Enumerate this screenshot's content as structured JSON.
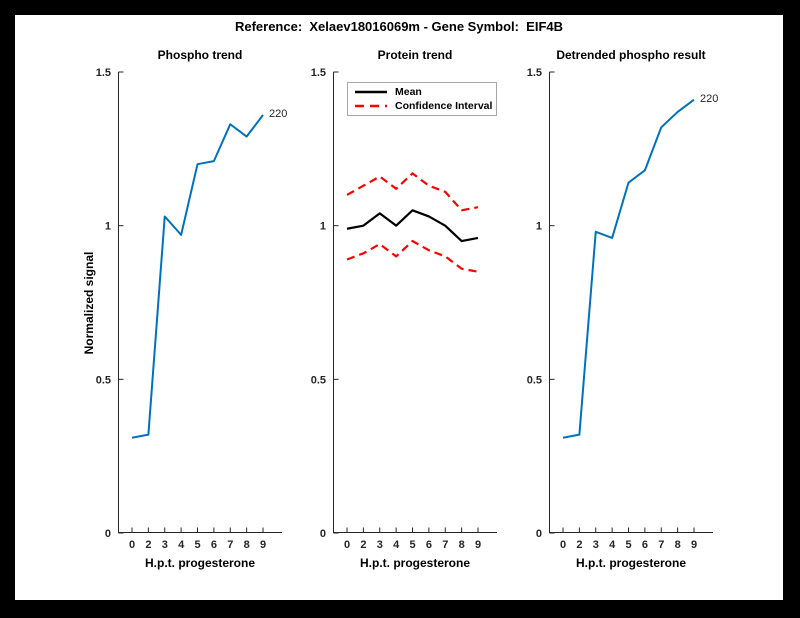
{
  "figure": {
    "title": "Reference:  Xelaev18016069m - Gene Symbol:  EIF4B",
    "ylabel": "Normalized signal",
    "background": "#ffffff",
    "frame_color": "#000000",
    "axis_color": "#262626",
    "accent_blue": "#0072bd",
    "accent_red": "#ff0000"
  },
  "chart_data": [
    {
      "type": "line",
      "title": "Phospho trend",
      "xlabel": "H.p.t. progesterone",
      "ylabel": "Normalized signal",
      "x_values": [
        0,
        2,
        3,
        4,
        5,
        6,
        7,
        8,
        9
      ],
      "x_tick_labels": [
        "0",
        "2",
        "3",
        "4",
        "5",
        "6",
        "7",
        "8",
        "9"
      ],
      "y_ticks": [
        0,
        0.5,
        1,
        1.5
      ],
      "ylim": [
        0,
        1.5
      ],
      "grid": false,
      "legend_position": "none",
      "end_label": "220",
      "series": [
        {
          "name": "220",
          "color": "#0072bd",
          "style": "solid",
          "width": 2,
          "values": [
            0.31,
            0.32,
            1.03,
            0.97,
            1.2,
            1.21,
            1.33,
            1.29,
            1.36
          ]
        }
      ]
    },
    {
      "type": "line",
      "title": "Protein trend",
      "xlabel": "H.p.t. progesterone",
      "ylabel": "",
      "x_values": [
        0,
        2,
        3,
        4,
        5,
        6,
        7,
        8,
        9
      ],
      "x_tick_labels": [
        "0",
        "2",
        "3",
        "4",
        "5",
        "6",
        "7",
        "8",
        "9"
      ],
      "y_ticks": [
        0,
        0.5,
        1,
        1.5
      ],
      "ylim": [
        0,
        1.5
      ],
      "grid": false,
      "legend_position": "top-left",
      "legend_items": [
        {
          "label": "Mean",
          "color": "#000000",
          "style": "solid"
        },
        {
          "label": "Confidence Interval",
          "color": "#ff0000",
          "style": "dashed"
        }
      ],
      "series": [
        {
          "name": "Mean",
          "color": "#000000",
          "style": "solid",
          "width": 2.2,
          "values": [
            0.99,
            1.0,
            1.04,
            1.0,
            1.05,
            1.03,
            1.0,
            0.95,
            0.96
          ]
        },
        {
          "name": "Confidence Interval upper",
          "color": "#ff0000",
          "style": "dashed",
          "width": 2.2,
          "values": [
            1.1,
            1.13,
            1.16,
            1.12,
            1.17,
            1.13,
            1.11,
            1.05,
            1.06
          ]
        },
        {
          "name": "Confidence Interval lower",
          "color": "#ff0000",
          "style": "dashed",
          "width": 2.2,
          "values": [
            0.89,
            0.91,
            0.94,
            0.9,
            0.95,
            0.92,
            0.9,
            0.86,
            0.85
          ]
        }
      ]
    },
    {
      "type": "line",
      "title": "Detrended phospho result",
      "xlabel": "H.p.t. progesterone",
      "ylabel": "",
      "x_values": [
        0,
        2,
        3,
        4,
        5,
        6,
        7,
        8,
        9
      ],
      "x_tick_labels": [
        "0",
        "2",
        "3",
        "4",
        "5",
        "6",
        "7",
        "8",
        "9"
      ],
      "y_ticks": [
        0,
        0.5,
        1,
        1.5
      ],
      "ylim": [
        0,
        1.5
      ],
      "grid": false,
      "legend_position": "none",
      "end_label": "220",
      "series": [
        {
          "name": "220",
          "color": "#0072bd",
          "style": "solid",
          "width": 2,
          "values": [
            0.31,
            0.32,
            0.98,
            0.96,
            1.14,
            1.18,
            1.32,
            1.37,
            1.41
          ]
        }
      ]
    }
  ]
}
